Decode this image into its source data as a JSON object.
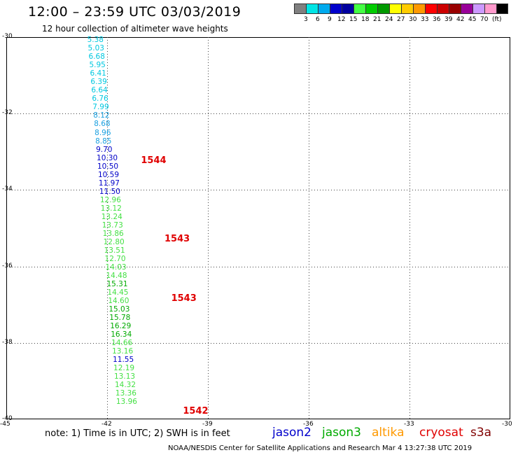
{
  "header": {
    "title": "12:00 – 23:59 UTC 03/03/2019",
    "subtitle": "12 hour collection of altimeter wave heights"
  },
  "colorbar": {
    "colors": [
      "#808080",
      "#00e5e5",
      "#00aaee",
      "#0000cc",
      "#0000a0",
      "#44ff44",
      "#00cc00",
      "#009900",
      "#ffff00",
      "#ffcc00",
      "#ff9900",
      "#ff0000",
      "#cc0000",
      "#990000",
      "#990099",
      "#cc99ff",
      "#ff99cc",
      "#000000"
    ],
    "labels": [
      "3",
      "6",
      "9",
      "12",
      "15",
      "18",
      "21",
      "24",
      "27",
      "30",
      "33",
      "36",
      "39",
      "42",
      "45",
      "70",
      "(ft)"
    ]
  },
  "map": {
    "lat_labels": [
      "-30",
      "-32",
      "-34",
      "-36",
      "-38",
      "-40"
    ],
    "lon_labels": [
      "-45",
      "-42",
      "-39",
      "-36",
      "-33",
      "-30"
    ],
    "lon_range": [
      -45,
      -30
    ],
    "lat_range": [
      -40,
      -30
    ]
  },
  "passes": [
    {
      "label": "1544",
      "lon": -40.7,
      "lat": -33.25
    },
    {
      "label": "1543",
      "lon": -40.0,
      "lat": -35.3
    },
    {
      "label": "1543",
      "lon": -39.8,
      "lat": -36.85
    },
    {
      "label": "1542",
      "lon": -39.45,
      "lat": -39.8
    }
  ],
  "observations": [
    {
      "value": "5.38",
      "lon": -42.3,
      "lat": -30.08,
      "color": "#00c8e0"
    },
    {
      "value": "5.03",
      "lon": -42.28,
      "lat": -30.3,
      "color": "#00c8e0"
    },
    {
      "value": "6.68",
      "lon": -42.26,
      "lat": -30.52,
      "color": "#00c8e0"
    },
    {
      "value": "5.95",
      "lon": -42.24,
      "lat": -30.74,
      "color": "#00c8e0"
    },
    {
      "value": "6.41",
      "lon": -42.22,
      "lat": -30.96,
      "color": "#00c8e0"
    },
    {
      "value": "6.39",
      "lon": -42.2,
      "lat": -31.18,
      "color": "#00c8e0"
    },
    {
      "value": "6.64",
      "lon": -42.18,
      "lat": -31.4,
      "color": "#00c8e0"
    },
    {
      "value": "6.76",
      "lon": -42.16,
      "lat": -31.62,
      "color": "#00c8e0"
    },
    {
      "value": "7.99",
      "lon": -42.14,
      "lat": -31.84,
      "color": "#00c8e0"
    },
    {
      "value": "8.12",
      "lon": -42.12,
      "lat": -32.06,
      "color": "#1aa0e0"
    },
    {
      "value": "8.68",
      "lon": -42.1,
      "lat": -32.28,
      "color": "#1aa0e0"
    },
    {
      "value": "8.96",
      "lon": -42.08,
      "lat": -32.5,
      "color": "#1aa0e0"
    },
    {
      "value": "8.85",
      "lon": -42.06,
      "lat": -32.72,
      "color": "#1aa0e0"
    },
    {
      "value": "9.70",
      "lon": -42.04,
      "lat": -32.94,
      "color": "#0000c8"
    },
    {
      "value": "10.30",
      "lon": -42.02,
      "lat": -33.16,
      "color": "#0000c8"
    },
    {
      "value": "10.50",
      "lon": -42.0,
      "lat": -33.38,
      "color": "#0000c8"
    },
    {
      "value": "10.59",
      "lon": -41.98,
      "lat": -33.6,
      "color": "#0000c8"
    },
    {
      "value": "11.97",
      "lon": -41.96,
      "lat": -33.82,
      "color": "#0000c8"
    },
    {
      "value": "11.50",
      "lon": -41.94,
      "lat": -34.04,
      "color": "#0000c8"
    },
    {
      "value": "12.96",
      "lon": -41.92,
      "lat": -34.26,
      "color": "#44e044"
    },
    {
      "value": "13.12",
      "lon": -41.9,
      "lat": -34.48,
      "color": "#44e044"
    },
    {
      "value": "13.24",
      "lon": -41.88,
      "lat": -34.7,
      "color": "#44e044"
    },
    {
      "value": "13.73",
      "lon": -41.86,
      "lat": -34.92,
      "color": "#44e044"
    },
    {
      "value": "13.86",
      "lon": -41.84,
      "lat": -35.14,
      "color": "#44e044"
    },
    {
      "value": "12.80",
      "lon": -41.82,
      "lat": -35.36,
      "color": "#44e044"
    },
    {
      "value": "13.51",
      "lon": -41.8,
      "lat": -35.58,
      "color": "#44e044"
    },
    {
      "value": "12.70",
      "lon": -41.78,
      "lat": -35.8,
      "color": "#44e044"
    },
    {
      "value": "14.03",
      "lon": -41.76,
      "lat": -36.02,
      "color": "#44e044"
    },
    {
      "value": "14.48",
      "lon": -41.74,
      "lat": -36.24,
      "color": "#44e044"
    },
    {
      "value": "15.31",
      "lon": -41.72,
      "lat": -36.46,
      "color": "#00aa00"
    },
    {
      "value": "14.45",
      "lon": -41.7,
      "lat": -36.68,
      "color": "#44e044"
    },
    {
      "value": "14.60",
      "lon": -41.68,
      "lat": -36.9,
      "color": "#44e044"
    },
    {
      "value": "15.03",
      "lon": -41.66,
      "lat": -37.12,
      "color": "#00aa00"
    },
    {
      "value": "15.78",
      "lon": -41.64,
      "lat": -37.34,
      "color": "#00aa00"
    },
    {
      "value": "16.29",
      "lon": -41.62,
      "lat": -37.56,
      "color": "#00aa00"
    },
    {
      "value": "16.34",
      "lon": -41.6,
      "lat": -37.78,
      "color": "#00aa00"
    },
    {
      "value": "14.66",
      "lon": -41.58,
      "lat": -38.0,
      "color": "#44e044"
    },
    {
      "value": "13.16",
      "lon": -41.56,
      "lat": -38.22,
      "color": "#44e044"
    },
    {
      "value": "11.55",
      "lon": -41.54,
      "lat": -38.44,
      "color": "#0000c8"
    },
    {
      "value": "12.19",
      "lon": -41.52,
      "lat": -38.66,
      "color": "#44e044"
    },
    {
      "value": "13.13",
      "lon": -41.5,
      "lat": -38.88,
      "color": "#44e044"
    },
    {
      "value": "14.32",
      "lon": -41.48,
      "lat": -39.1,
      "color": "#44e044"
    },
    {
      "value": "13.36",
      "lon": -41.46,
      "lat": -39.32,
      "color": "#44e044"
    },
    {
      "value": "13.96",
      "lon": -41.44,
      "lat": -39.54,
      "color": "#44e044"
    }
  ],
  "footer": {
    "note": "note: 1) Time is in UTC; 2) SWH is in feet",
    "legend": [
      {
        "name": "jason2",
        "color": "#0000cc"
      },
      {
        "name": "jason3",
        "color": "#00aa00"
      },
      {
        "name": "altika",
        "color": "#ff9900"
      },
      {
        "name": "cryosat",
        "color": "#e00000"
      },
      {
        "name": "s3a",
        "color": "#800000"
      }
    ],
    "credit": "NOAA/NESDIS Center for Satellite Applications and Research    Mar  4 13:27:38 UTC 2019"
  }
}
